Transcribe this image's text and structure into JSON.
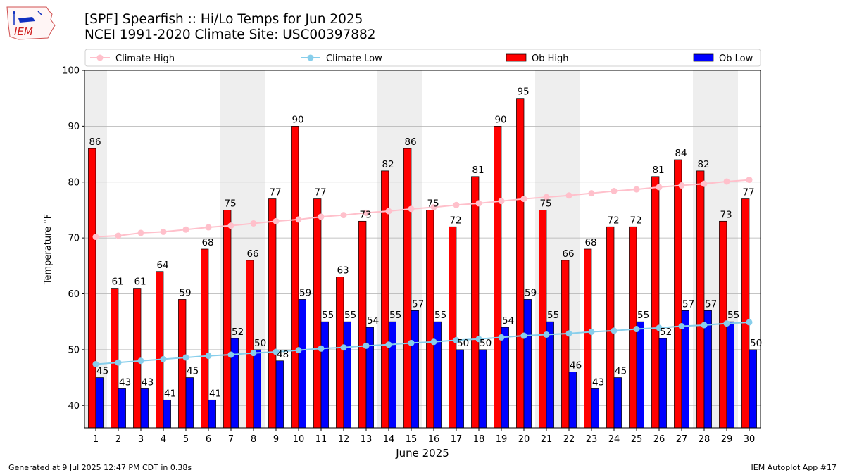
{
  "title": {
    "line1": "[SPF] Spearfish :: Hi/Lo Temps for Jun 2025",
    "line2": "NCEI 1991-2020 Climate Site: USC00397882"
  },
  "logo_text": "IEM",
  "footer": {
    "left": "Generated at 9 Jul 2025 12:47 PM CDT in 0.38s",
    "right": "IEM Autoplot App #17"
  },
  "colors": {
    "ob_high": "#ff0000",
    "ob_low": "#0000ff",
    "climate_high": "#ffc0cb",
    "climate_low": "#87ceeb",
    "weekend_band": "#eeeeee",
    "grid": "#b0b0b0"
  },
  "chart_data": {
    "type": "bar",
    "xlabel": "June 2025",
    "ylabel": "Temperature °F",
    "ylim": [
      36,
      100
    ],
    "yticks": [
      40,
      50,
      60,
      70,
      80,
      90,
      100
    ],
    "grid": "horizontal",
    "legend_position": "top",
    "weekend_days": [
      1,
      7,
      8,
      14,
      15,
      21,
      22,
      28,
      29
    ],
    "categories": [
      "1",
      "2",
      "3",
      "4",
      "5",
      "6",
      "7",
      "8",
      "9",
      "10",
      "11",
      "12",
      "13",
      "14",
      "15",
      "16",
      "17",
      "18",
      "19",
      "20",
      "21",
      "22",
      "23",
      "24",
      "25",
      "26",
      "27",
      "28",
      "29",
      "30"
    ],
    "series": [
      {
        "name": "Ob High",
        "kind": "bar",
        "values": [
          86,
          61,
          61,
          64,
          59,
          68,
          75,
          66,
          77,
          90,
          77,
          63,
          73,
          82,
          86,
          75,
          72,
          81,
          90,
          95,
          75,
          66,
          68,
          72,
          72,
          81,
          84,
          82,
          73,
          77
        ]
      },
      {
        "name": "Ob Low",
        "kind": "bar",
        "values": [
          45,
          43,
          43,
          41,
          45,
          41,
          52,
          50,
          48,
          59,
          55,
          55,
          54,
          55,
          57,
          55,
          50,
          50,
          54,
          59,
          55,
          46,
          43,
          45,
          55,
          52,
          57,
          57,
          55,
          50
        ]
      },
      {
        "name": "Climate High",
        "kind": "line",
        "values": [
          70.2,
          70.4,
          70.9,
          71.1,
          71.5,
          71.9,
          72.2,
          72.6,
          73.0,
          73.3,
          73.8,
          74.1,
          74.5,
          74.8,
          75.2,
          75.5,
          75.9,
          76.2,
          76.6,
          77.0,
          77.3,
          77.6,
          78.0,
          78.4,
          78.7,
          79.1,
          79.4,
          79.7,
          80.1,
          80.4
        ]
      },
      {
        "name": "Climate Low",
        "kind": "line",
        "values": [
          47.4,
          47.7,
          48.0,
          48.3,
          48.6,
          48.9,
          49.1,
          49.4,
          49.6,
          49.9,
          50.2,
          50.4,
          50.7,
          50.9,
          51.2,
          51.4,
          51.7,
          51.9,
          52.2,
          52.5,
          52.7,
          52.9,
          53.2,
          53.4,
          53.7,
          53.9,
          54.2,
          54.4,
          54.7,
          54.9
        ]
      }
    ]
  }
}
